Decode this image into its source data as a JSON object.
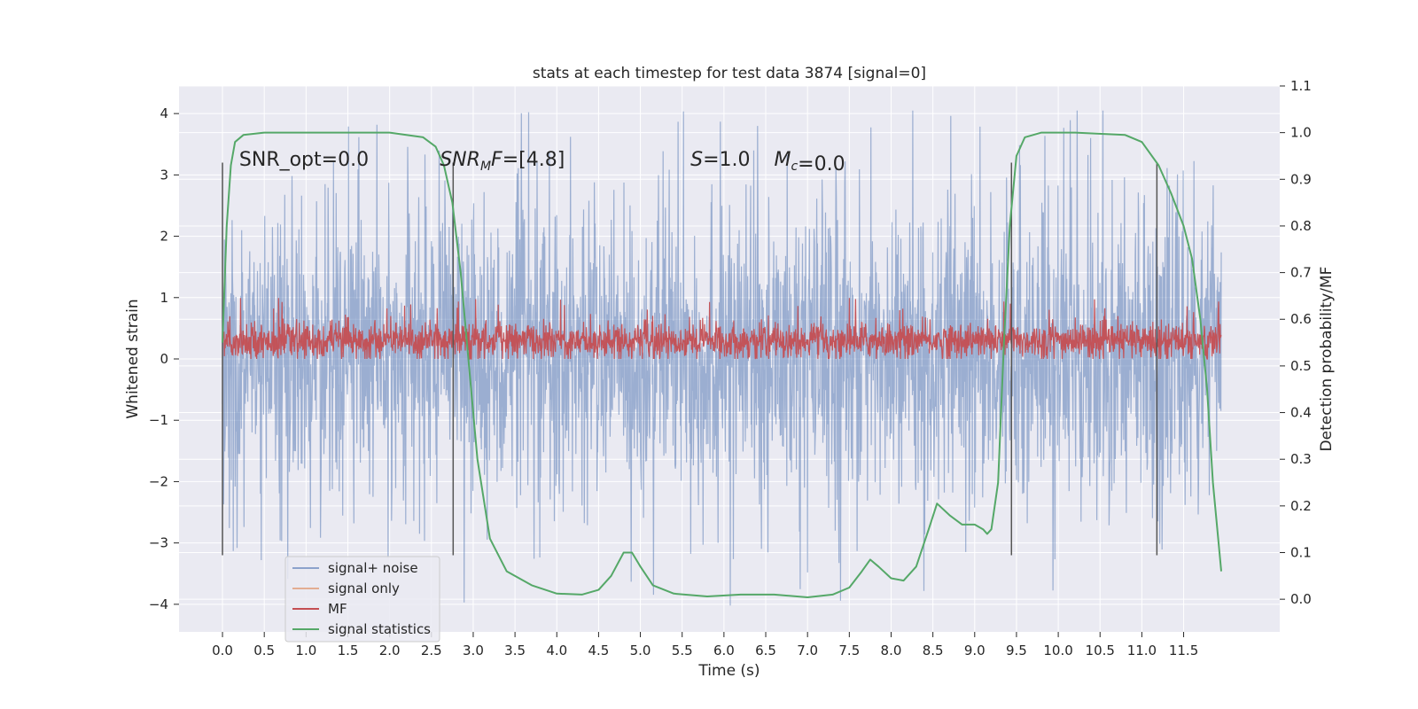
{
  "chart_data": {
    "type": "line",
    "title": "stats at each timestep for test data 3874 [signal=0]",
    "xlabel": "Time (s)",
    "ylabel": "Whitened strain",
    "ylabel_right": "Detection probability/MF",
    "xlim": [
      -0.52,
      12.65
    ],
    "ylim": [
      -4.45,
      4.45
    ],
    "ylim_right": [
      -0.07,
      1.1
    ],
    "x_ticks": [
      0.0,
      0.5,
      1.0,
      1.5,
      2.0,
      2.5,
      3.0,
      3.5,
      4.0,
      4.5,
      5.0,
      5.5,
      6.0,
      6.5,
      7.0,
      7.5,
      8.0,
      8.5,
      9.0,
      9.5,
      10.0,
      10.5,
      11.0,
      11.5
    ],
    "x_tick_labels": [
      "0.0",
      "0.5",
      "1.0",
      "1.5",
      "2.0",
      "2.5",
      "3.0",
      "3.5",
      "4.0",
      "4.5",
      "5.0",
      "5.5",
      "6.0",
      "6.5",
      "7.0",
      "7.5",
      "8.0",
      "8.5",
      "9.0",
      "9.5",
      "10.0",
      "10.5",
      "11.0",
      "11.5"
    ],
    "y_ticks": [
      4,
      3,
      2,
      1,
      0,
      -1,
      -2,
      -3,
      -4
    ],
    "y_tick_labels": [
      "4",
      "3",
      "2",
      "1",
      "0",
      "−1",
      "−2",
      "−3",
      "−4"
    ],
    "y_right_ticks": [
      1.1,
      1.0,
      0.9,
      0.8,
      0.7,
      0.6,
      0.5,
      0.4,
      0.3,
      0.2,
      0.1,
      0.0
    ],
    "y_right_tick_labels": [
      "1.1",
      "1.0",
      "0.9",
      "0.8",
      "0.7",
      "0.6",
      "0.5",
      "0.4",
      "0.3",
      "0.2",
      "0.1",
      "0.0"
    ],
    "grid": true,
    "legend_position": "lower-left",
    "annotations": [
      {
        "text": "SNR_opt=0.0",
        "x": 0.2,
        "y": 3.15
      },
      {
        "text": "=[4.8]",
        "math": "SNR",
        "sub": "M",
        "after_sub": "F",
        "x": 2.6,
        "y": 3.15
      },
      {
        "text": "=1.0",
        "math": "S",
        "x": 5.6,
        "y": 3.15
      },
      {
        "text": "=0.0",
        "math": "M",
        "sub": "c",
        "x": 6.6,
        "y": 3.15
      }
    ],
    "vertical_lines": [
      0.0,
      2.76,
      9.44,
      11.18
    ],
    "vertical_line_range": [
      -3.2,
      3.2
    ],
    "series": [
      {
        "name": "signal+ noise",
        "color": "#4c72b0",
        "axis": "left",
        "kind": "noise",
        "x_range": [
          0.0,
          11.95
        ],
        "typical_range": [
          -2.0,
          2.1
        ],
        "extremes": [
          -4.05,
          4.05
        ]
      },
      {
        "name": "signal only",
        "color": "#dd8452",
        "axis": "left",
        "values": []
      },
      {
        "name": "MF",
        "color": "#c44e52",
        "axis": "left",
        "kind": "noise",
        "x_range": [
          0.0,
          11.95
        ],
        "typical_range": [
          0.05,
          0.55
        ],
        "extremes": [
          0.0,
          1.0
        ]
      },
      {
        "name": "signal statistics",
        "color": "#55a868",
        "axis": "right",
        "x": [
          0.0,
          0.05,
          0.1,
          0.15,
          0.25,
          0.5,
          1.0,
          1.5,
          2.0,
          2.4,
          2.55,
          2.65,
          2.75,
          2.85,
          2.95,
          3.05,
          3.2,
          3.4,
          3.7,
          4.0,
          4.3,
          4.5,
          4.65,
          4.8,
          4.9,
          5.0,
          5.15,
          5.4,
          5.8,
          6.2,
          6.6,
          7.0,
          7.3,
          7.5,
          7.65,
          7.75,
          7.85,
          8.0,
          8.15,
          8.3,
          8.45,
          8.55,
          8.7,
          8.85,
          9.0,
          9.1,
          9.15,
          9.2,
          9.28,
          9.35,
          9.42,
          9.5,
          9.6,
          9.8,
          10.2,
          10.8,
          11.0,
          11.2,
          11.35,
          11.5,
          11.6,
          11.7,
          11.78,
          11.85,
          11.95
        ],
        "values": [
          0.55,
          0.8,
          0.93,
          0.98,
          0.995,
          1.0,
          1.0,
          1.0,
          1.0,
          0.99,
          0.97,
          0.93,
          0.85,
          0.7,
          0.5,
          0.3,
          0.13,
          0.06,
          0.03,
          0.012,
          0.01,
          0.02,
          0.05,
          0.1,
          0.1,
          0.07,
          0.03,
          0.012,
          0.006,
          0.01,
          0.01,
          0.004,
          0.01,
          0.025,
          0.06,
          0.085,
          0.07,
          0.045,
          0.04,
          0.07,
          0.15,
          0.205,
          0.18,
          0.16,
          0.16,
          0.15,
          0.14,
          0.15,
          0.25,
          0.55,
          0.8,
          0.95,
          0.99,
          1.0,
          1.0,
          0.995,
          0.98,
          0.93,
          0.87,
          0.8,
          0.73,
          0.6,
          0.45,
          0.25,
          0.06
        ]
      }
    ]
  }
}
